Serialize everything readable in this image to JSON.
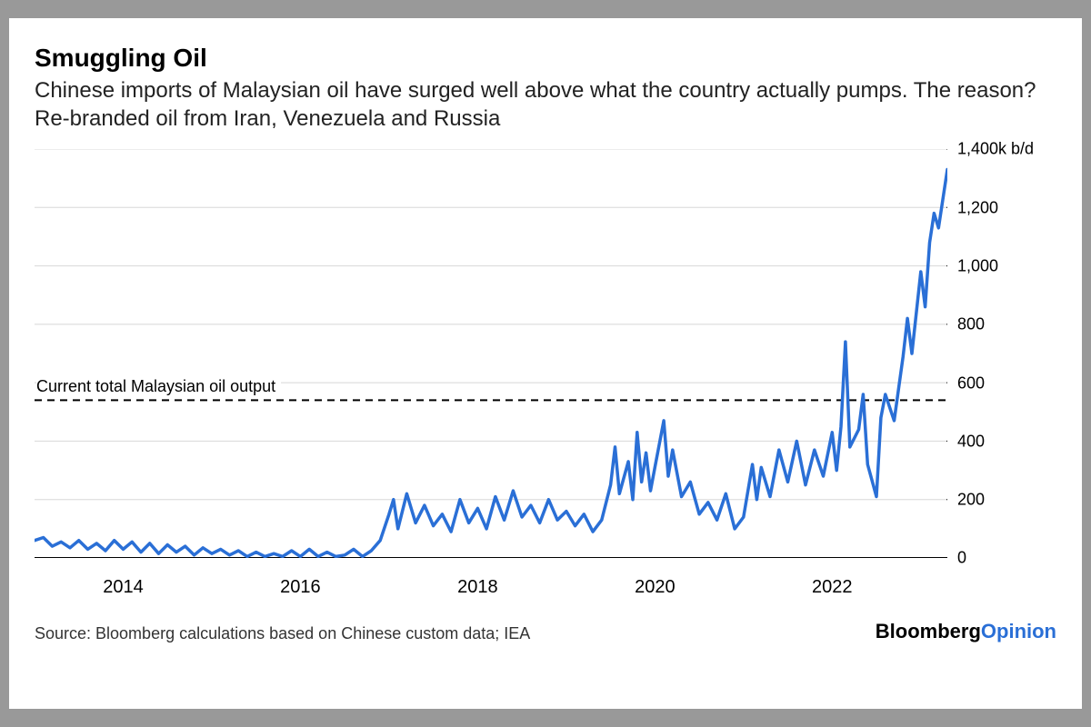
{
  "title": "Smuggling Oil",
  "subtitle": "Chinese imports of Malaysian oil have surged well above what the country actually pumps. The reason? Re-branded oil from Iran, Venezuela and Russia",
  "source": "Source: Bloomberg calculations based on Chinese custom data; IEA",
  "brand": {
    "part1": "Bloomberg",
    "part2": "Opinion"
  },
  "chart": {
    "type": "line",
    "ylim": [
      0,
      1400
    ],
    "y_ticks": [
      0,
      200,
      400,
      600,
      800,
      1000,
      1200,
      1400
    ],
    "y_tick_labels": [
      "0",
      "200",
      "400",
      "600",
      "800",
      "1,000",
      "1,200",
      "1,400k b/d"
    ],
    "x_range": [
      2013,
      2023.3
    ],
    "x_ticks": [
      2014,
      2016,
      2018,
      2020,
      2022
    ],
    "x_tick_labels": [
      "2014",
      "2016",
      "2018",
      "2020",
      "2022"
    ],
    "line_color": "#2a6fd6",
    "line_width": 3.5,
    "grid_color": "#d8d8d8",
    "axis_color": "#000000",
    "tick_len": 8,
    "background_color": "#ffffff",
    "reference": {
      "value": 540,
      "label": "Current total Malaysian oil output",
      "dash": "8,6",
      "color": "#000000"
    },
    "series": [
      [
        2013.0,
        60
      ],
      [
        2013.1,
        70
      ],
      [
        2013.2,
        40
      ],
      [
        2013.3,
        55
      ],
      [
        2013.4,
        35
      ],
      [
        2013.5,
        60
      ],
      [
        2013.6,
        30
      ],
      [
        2013.7,
        50
      ],
      [
        2013.8,
        25
      ],
      [
        2013.9,
        60
      ],
      [
        2014.0,
        30
      ],
      [
        2014.1,
        55
      ],
      [
        2014.2,
        20
      ],
      [
        2014.3,
        50
      ],
      [
        2014.4,
        15
      ],
      [
        2014.5,
        45
      ],
      [
        2014.6,
        20
      ],
      [
        2014.7,
        40
      ],
      [
        2014.8,
        10
      ],
      [
        2014.9,
        35
      ],
      [
        2015.0,
        15
      ],
      [
        2015.1,
        30
      ],
      [
        2015.2,
        10
      ],
      [
        2015.3,
        25
      ],
      [
        2015.4,
        5
      ],
      [
        2015.5,
        20
      ],
      [
        2015.6,
        5
      ],
      [
        2015.7,
        15
      ],
      [
        2015.8,
        5
      ],
      [
        2015.9,
        25
      ],
      [
        2016.0,
        5
      ],
      [
        2016.1,
        30
      ],
      [
        2016.2,
        5
      ],
      [
        2016.3,
        20
      ],
      [
        2016.4,
        5
      ],
      [
        2016.5,
        10
      ],
      [
        2016.6,
        30
      ],
      [
        2016.7,
        5
      ],
      [
        2016.8,
        25
      ],
      [
        2016.9,
        60
      ],
      [
        2017.0,
        150
      ],
      [
        2017.05,
        200
      ],
      [
        2017.1,
        100
      ],
      [
        2017.2,
        220
      ],
      [
        2017.3,
        120
      ],
      [
        2017.4,
        180
      ],
      [
        2017.5,
        110
      ],
      [
        2017.6,
        150
      ],
      [
        2017.7,
        90
      ],
      [
        2017.8,
        200
      ],
      [
        2017.9,
        120
      ],
      [
        2018.0,
        170
      ],
      [
        2018.1,
        100
      ],
      [
        2018.2,
        210
      ],
      [
        2018.3,
        130
      ],
      [
        2018.4,
        230
      ],
      [
        2018.5,
        140
      ],
      [
        2018.6,
        180
      ],
      [
        2018.7,
        120
      ],
      [
        2018.8,
        200
      ],
      [
        2018.9,
        130
      ],
      [
        2019.0,
        160
      ],
      [
        2019.1,
        110
      ],
      [
        2019.2,
        150
      ],
      [
        2019.3,
        90
      ],
      [
        2019.4,
        130
      ],
      [
        2019.5,
        250
      ],
      [
        2019.55,
        380
      ],
      [
        2019.6,
        220
      ],
      [
        2019.7,
        330
      ],
      [
        2019.75,
        200
      ],
      [
        2019.8,
        430
      ],
      [
        2019.85,
        260
      ],
      [
        2019.9,
        360
      ],
      [
        2019.95,
        230
      ],
      [
        2020.0,
        310
      ],
      [
        2020.1,
        470
      ],
      [
        2020.15,
        280
      ],
      [
        2020.2,
        370
      ],
      [
        2020.3,
        210
      ],
      [
        2020.4,
        260
      ],
      [
        2020.5,
        150
      ],
      [
        2020.6,
        190
      ],
      [
        2020.7,
        130
      ],
      [
        2020.8,
        220
      ],
      [
        2020.9,
        100
      ],
      [
        2021.0,
        140
      ],
      [
        2021.1,
        320
      ],
      [
        2021.15,
        200
      ],
      [
        2021.2,
        310
      ],
      [
        2021.3,
        210
      ],
      [
        2021.4,
        370
      ],
      [
        2021.5,
        260
      ],
      [
        2021.6,
        400
      ],
      [
        2021.7,
        250
      ],
      [
        2021.8,
        370
      ],
      [
        2021.9,
        280
      ],
      [
        2022.0,
        430
      ],
      [
        2022.05,
        300
      ],
      [
        2022.1,
        450
      ],
      [
        2022.15,
        740
      ],
      [
        2022.2,
        380
      ],
      [
        2022.3,
        440
      ],
      [
        2022.35,
        560
      ],
      [
        2022.4,
        320
      ],
      [
        2022.5,
        210
      ],
      [
        2022.55,
        480
      ],
      [
        2022.6,
        560
      ],
      [
        2022.7,
        470
      ],
      [
        2022.8,
        690
      ],
      [
        2022.85,
        820
      ],
      [
        2022.9,
        700
      ],
      [
        2023.0,
        980
      ],
      [
        2023.05,
        860
      ],
      [
        2023.1,
        1080
      ],
      [
        2023.15,
        1180
      ],
      [
        2023.2,
        1130
      ],
      [
        2023.3,
        1330
      ]
    ]
  }
}
